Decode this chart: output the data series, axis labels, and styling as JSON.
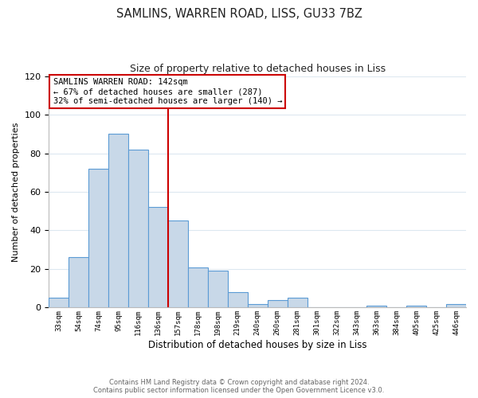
{
  "title": "SAMLINS, WARREN ROAD, LISS, GU33 7BZ",
  "subtitle": "Size of property relative to detached houses in Liss",
  "xlabel": "Distribution of detached houses by size in Liss",
  "ylabel": "Number of detached properties",
  "bar_labels": [
    "33sqm",
    "54sqm",
    "74sqm",
    "95sqm",
    "116sqm",
    "136sqm",
    "157sqm",
    "178sqm",
    "198sqm",
    "219sqm",
    "240sqm",
    "260sqm",
    "281sqm",
    "301sqm",
    "322sqm",
    "343sqm",
    "363sqm",
    "384sqm",
    "405sqm",
    "425sqm",
    "446sqm"
  ],
  "bar_values": [
    5,
    26,
    72,
    90,
    82,
    52,
    45,
    21,
    19,
    8,
    2,
    4,
    5,
    0,
    0,
    0,
    1,
    0,
    1,
    0,
    2
  ],
  "bar_color": "#c8d8e8",
  "bar_edge_color": "#5b9bd5",
  "ylim": [
    0,
    120
  ],
  "yticks": [
    0,
    20,
    40,
    60,
    80,
    100,
    120
  ],
  "property_line_x": 5.5,
  "property_line_label": "SAMLINS WARREN ROAD: 142sqm",
  "annotation_line1": "← 67% of detached houses are smaller (287)",
  "annotation_line2": "32% of semi-detached houses are larger (140) →",
  "annotation_box_color": "#ffffff",
  "annotation_box_edge": "#cc0000",
  "line_color": "#cc0000",
  "footer_line1": "Contains HM Land Registry data © Crown copyright and database right 2024.",
  "footer_line2": "Contains public sector information licensed under the Open Government Licence v3.0.",
  "bg_color": "#ffffff",
  "grid_color": "#dde8f0"
}
